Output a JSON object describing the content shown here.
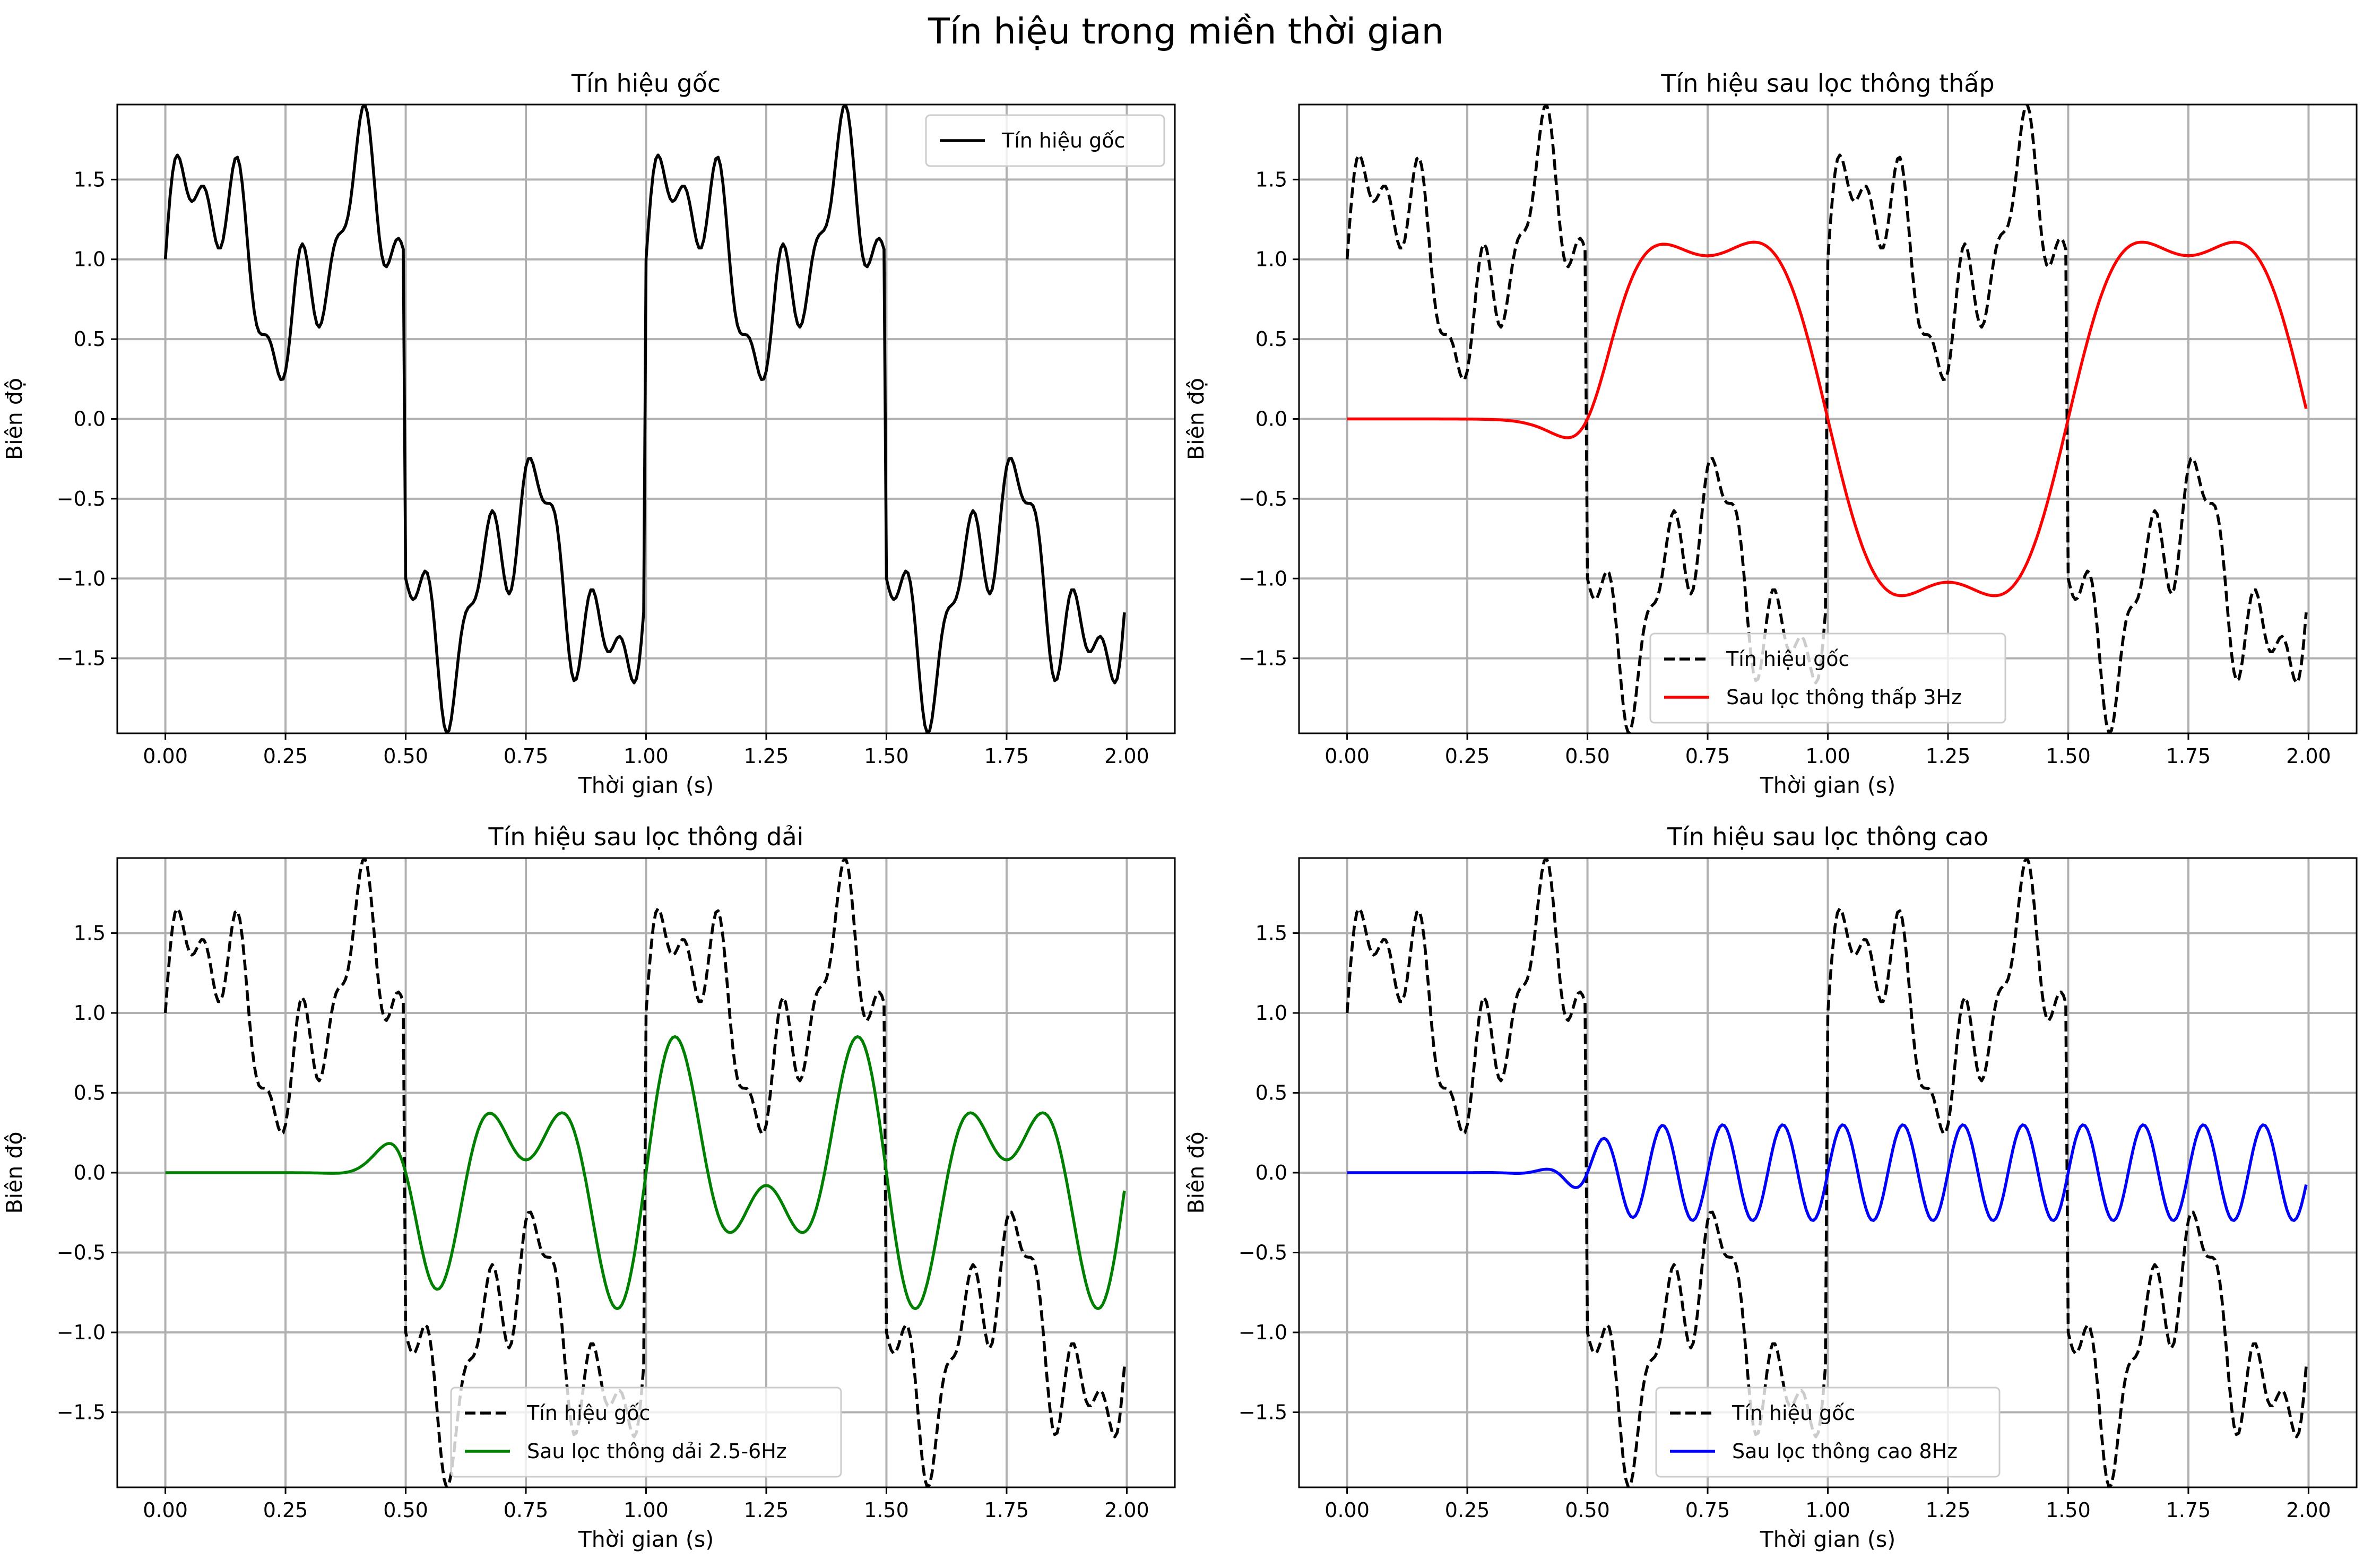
{
  "figure": {
    "title": "Tín hiệu trong miền thời gian"
  },
  "chart_data": [
    {
      "type": "line",
      "title": "Tín hiệu gốc",
      "xlabel": "Thời gian (s)",
      "ylabel": "Biên độ",
      "xlim": [
        -0.1,
        2.1
      ],
      "ylim": [
        -1.97,
        1.97
      ],
      "xticks": [
        "0.00",
        "0.25",
        "0.50",
        "0.75",
        "1.00",
        "1.25",
        "1.50",
        "1.75",
        "2.00"
      ],
      "yticks": [
        "−1.5",
        "−1.0",
        "−0.5",
        "0.0",
        "0.5",
        "1.0",
        "1.5"
      ],
      "grid": true,
      "legend_position": "upper right",
      "series": [
        {
          "name": "Tín hiệu gốc",
          "color": "#000000",
          "style": "solid",
          "signal": "original",
          "formula": "sq(t) + 0.5*sin(2π·3t) + 0.3*sin(2π·8t) + 0.2*sin(2π·15t)",
          "x_range": [
            0,
            1.995
          ],
          "samples": 400
        }
      ]
    },
    {
      "type": "line",
      "title": "Tín hiệu sau lọc thông thấp",
      "xlabel": "Thời gian (s)",
      "ylabel": "Biên độ",
      "xlim": [
        -0.1,
        2.1
      ],
      "ylim": [
        -1.97,
        1.97
      ],
      "xticks": [
        "0.00",
        "0.25",
        "0.50",
        "0.75",
        "1.00",
        "1.25",
        "1.50",
        "1.75",
        "2.00"
      ],
      "yticks": [
        "−1.5",
        "−1.0",
        "−0.5",
        "0.0",
        "0.5",
        "1.0",
        "1.5"
      ],
      "grid": true,
      "legend_position": "lower center",
      "series": [
        {
          "name": "Tín hiệu gốc",
          "color": "#000000",
          "style": "dashed",
          "signal": "original",
          "formula": "sq(t) + 0.5*sin(2π·3t) + 0.3*sin(2π·8t) + 0.2*sin(2π·15t)",
          "x_range": [
            0,
            1.995
          ],
          "samples": 400
        },
        {
          "name": "Sau lọc thông thấp 3Hz",
          "color": "#ff0000",
          "style": "solid",
          "signal": "lowpass",
          "formula": "-(4/π)sin(2πt)·s(t−0.5) − 0.25·sin(2π·3t)·s(t−0.5)",
          "x_range": [
            0,
            1.995
          ],
          "samples": 400
        }
      ]
    },
    {
      "type": "line",
      "title": "Tín hiệu sau lọc thông dải",
      "xlabel": "Thời gian (s)",
      "ylabel": "Biên độ",
      "xlim": [
        -0.1,
        2.1
      ],
      "ylim": [
        -1.97,
        1.97
      ],
      "xticks": [
        "0.00",
        "0.25",
        "0.50",
        "0.75",
        "1.00",
        "1.25",
        "1.50",
        "1.75",
        "2.00"
      ],
      "yticks": [
        "−1.5",
        "−1.0",
        "−0.5",
        "0.0",
        "0.5",
        "1.0",
        "1.5"
      ],
      "grid": true,
      "legend_position": "lower center",
      "series": [
        {
          "name": "Tín hiệu gốc",
          "color": "#000000",
          "style": "dashed",
          "signal": "original",
          "formula": "sq(t) + 0.5*sin(2π·3t) + 0.3*sin(2π·8t) + 0.2*sin(2π·15t)",
          "x_range": [
            0,
            1.995
          ],
          "samples": 400
        },
        {
          "name": "Sau lọc thông dải 2.5-6Hz",
          "color": "#008000",
          "style": "solid",
          "signal": "bandpass",
          "formula": "(0.5·sin(2π·3t) + 0.42·sin(2π·5t))·s(t−0.5)",
          "x_range": [
            0,
            1.995
          ],
          "samples": 400
        }
      ]
    },
    {
      "type": "line",
      "title": "Tín hiệu sau lọc thông cao",
      "xlabel": "Thời gian (s)",
      "ylabel": "Biên độ",
      "xlim": [
        -0.1,
        2.1
      ],
      "ylim": [
        -1.97,
        1.97
      ],
      "xticks": [
        "0.00",
        "0.25",
        "0.50",
        "0.75",
        "1.00",
        "1.25",
        "1.50",
        "1.75",
        "2.00"
      ],
      "yticks": [
        "−1.5",
        "−1.0",
        "−0.5",
        "0.0",
        "0.5",
        "1.0",
        "1.5"
      ],
      "grid": true,
      "legend_position": "lower center",
      "series": [
        {
          "name": "Tín hiệu gốc",
          "color": "#000000",
          "style": "dashed",
          "signal": "original",
          "formula": "sq(t) + 0.5*sin(2π·3t) + 0.3*sin(2π·8t) + 0.2*sin(2π·15t)",
          "x_range": [
            0,
            1.995
          ],
          "samples": 400
        },
        {
          "name": "Sau lọc thông cao 8Hz",
          "color": "#0000ff",
          "style": "solid",
          "signal": "highpass",
          "formula": "0.3·sin(2π·8t)·s(t−0.5)",
          "x_range": [
            0,
            1.995
          ],
          "samples": 400
        }
      ]
    }
  ]
}
